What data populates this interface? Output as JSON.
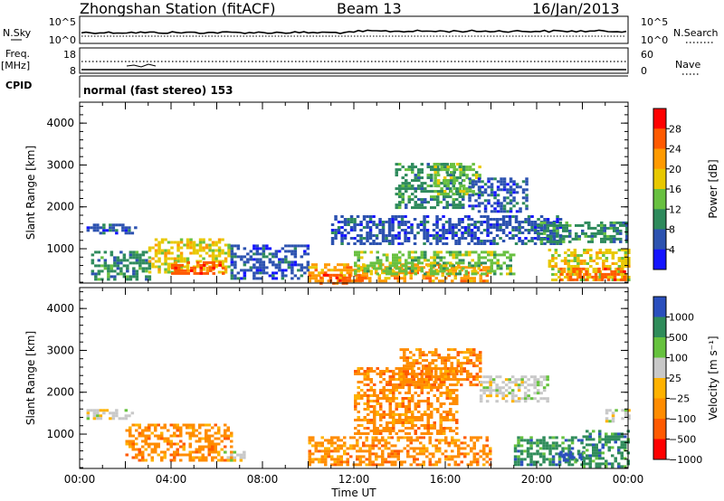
{
  "header": {
    "station": "Zhongshan Station (fitACF)",
    "beam": "Beam 13",
    "date": "16/Jan/2013"
  },
  "top_panels": {
    "nsky_label": "N.Sky",
    "nsky_ticks": [
      "10^5",
      "10^0"
    ],
    "nsearch_label": "N.Search",
    "nsearch_ticks": [
      "10^5",
      "10^0"
    ],
    "freq_label": "Freq.",
    "freq_unit": "[MHz]",
    "freq_ticks": [
      "18",
      "8"
    ],
    "nave_label": "Nave",
    "nave_ticks": [
      "60",
      "0"
    ],
    "cpid_label": "CPID",
    "cpid_text": "normal (fast stereo) 153"
  },
  "chart_data": [
    {
      "type": "heatmap",
      "panel": "power",
      "ylabel": "Slant Range [km]",
      "ylim": [
        180,
        4500
      ],
      "yticks": [
        1000,
        2000,
        3000,
        4000
      ],
      "x_range_hours": [
        0,
        24
      ],
      "colorbar_label": "Power [dB]",
      "colorbar_ticks": [
        "28",
        "24",
        "20",
        "16",
        "12",
        "8",
        "4"
      ],
      "colorbar_colors": [
        "#ff0000",
        "#ff5a00",
        "#ff9a00",
        "#e8c800",
        "#68c040",
        "#2e8a5c",
        "#2c52b0",
        "#1414ff"
      ],
      "regions": [
        {
          "t0": 0.3,
          "t1": 2.5,
          "r0": 1350,
          "r1": 1600,
          "level": 1
        },
        {
          "t0": 0.5,
          "t1": 3.0,
          "r0": 300,
          "r1": 950,
          "level": 2
        },
        {
          "t0": 3.0,
          "t1": 6.6,
          "r0": 450,
          "r1": 1250,
          "level": 4
        },
        {
          "t0": 4.0,
          "t1": 6.3,
          "r0": 400,
          "r1": 700,
          "level": 6
        },
        {
          "t0": 6.6,
          "t1": 10.0,
          "r0": 300,
          "r1": 1100,
          "level": 1
        },
        {
          "t0": 10.0,
          "t1": 18.0,
          "r0": 200,
          "r1": 650,
          "level": 5
        },
        {
          "t0": 10.5,
          "t1": 12.5,
          "r0": 200,
          "r1": 400,
          "level": 6
        },
        {
          "t0": 12.0,
          "t1": 19.0,
          "r0": 400,
          "r1": 950,
          "level": 3
        },
        {
          "t0": 11.0,
          "t1": 21.0,
          "r0": 1100,
          "r1": 1800,
          "level": 1
        },
        {
          "t0": 13.8,
          "t1": 16.8,
          "r0": 2000,
          "r1": 3050,
          "level": 2
        },
        {
          "t0": 15.5,
          "t1": 17.5,
          "r0": 2300,
          "r1": 3050,
          "level": 3
        },
        {
          "t0": 17.0,
          "t1": 19.5,
          "r0": 1900,
          "r1": 2700,
          "level": 1
        },
        {
          "t0": 20.0,
          "t1": 24.0,
          "r0": 1150,
          "r1": 1650,
          "level": 2
        },
        {
          "t0": 20.5,
          "t1": 24.0,
          "r0": 250,
          "r1": 1000,
          "level": 4
        },
        {
          "t0": 21.0,
          "t1": 23.8,
          "r0": 250,
          "r1": 550,
          "level": 6
        }
      ]
    },
    {
      "type": "heatmap",
      "panel": "velocity",
      "ylabel": "Slant Range [km]",
      "ylim": [
        180,
        4500
      ],
      "yticks": [
        1000,
        2000,
        3000,
        4000
      ],
      "x_range_hours": [
        0,
        24
      ],
      "xticks": [
        "00:00",
        "04:00",
        "08:00",
        "12:00",
        "16:00",
        "20:00",
        "00:00"
      ],
      "xlabel": "Time UT",
      "colorbar_label": "Velocity [m s⁻¹]",
      "colorbar_ticks": [
        "1000",
        "500",
        "100",
        "25",
        "−25",
        "−100",
        "−500",
        "−1000"
      ],
      "colorbar_colors": [
        "#2a4fbd",
        "#2f8c5a",
        "#66c23e",
        "#c8c8c8",
        "#ffb200",
        "#ff8c00",
        "#ff5a00",
        "#ff0000"
      ],
      "regions": [
        {
          "t0": 0.3,
          "t1": 2.5,
          "r0": 1350,
          "r1": 1600,
          "level": 3
        },
        {
          "t0": 2.0,
          "t1": 6.6,
          "r0": 400,
          "r1": 1250,
          "level": 5
        },
        {
          "t0": 6.3,
          "t1": 7.2,
          "r0": 400,
          "r1": 600,
          "level": 3
        },
        {
          "t0": 10.0,
          "t1": 18.0,
          "r0": 300,
          "r1": 950,
          "level": 5
        },
        {
          "t0": 12.0,
          "t1": 16.5,
          "r0": 1000,
          "r1": 2600,
          "level": 5
        },
        {
          "t0": 14.0,
          "t1": 17.5,
          "r0": 2200,
          "r1": 3050,
          "level": 5
        },
        {
          "t0": 17.5,
          "t1": 20.5,
          "r0": 1800,
          "r1": 2400,
          "level": 3
        },
        {
          "t0": 19.0,
          "t1": 22.0,
          "r0": 300,
          "r1": 950,
          "level": 1
        },
        {
          "t0": 21.0,
          "t1": 22.0,
          "r0": 350,
          "r1": 600,
          "level": 0
        },
        {
          "t0": 22.0,
          "t1": 24.0,
          "r0": 250,
          "r1": 1100,
          "level": 1
        },
        {
          "t0": 23.0,
          "t1": 24.0,
          "r0": 1300,
          "r1": 1600,
          "level": 3
        }
      ]
    }
  ]
}
